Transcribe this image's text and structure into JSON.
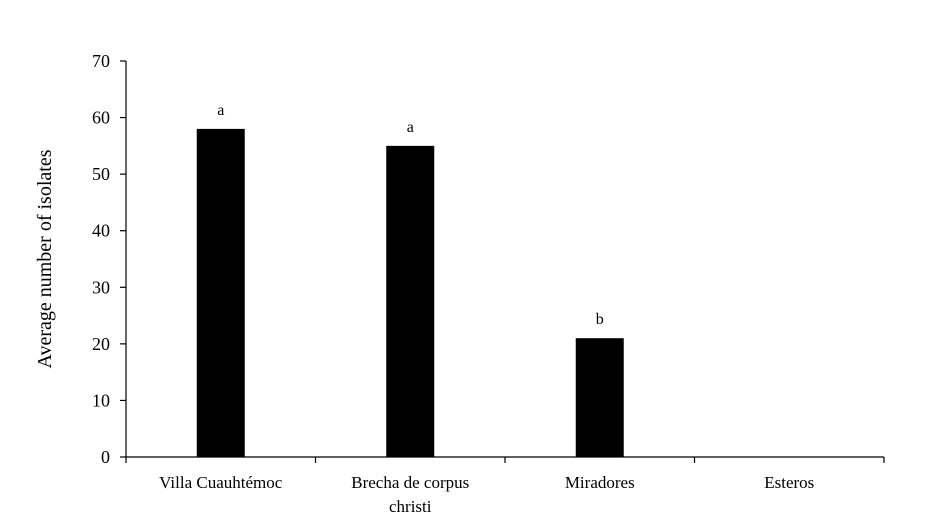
{
  "chart_data": {
    "type": "bar",
    "categories": [
      "Villa Cuauhtémoc",
      "Brecha de corpus christi",
      "Miradores",
      "Esteros"
    ],
    "category_label_lines": [
      [
        "Villa Cuauhtémoc"
      ],
      [
        "Brecha de corpus",
        "christi"
      ],
      [
        "Miradores"
      ],
      [
        "Esteros"
      ]
    ],
    "values": [
      58,
      55,
      21,
      0
    ],
    "data_labels": [
      "a",
      "a",
      "b",
      ""
    ],
    "title": "",
    "xlabel": "",
    "ylabel": "Average number of isolates",
    "ylim": [
      0,
      70
    ],
    "yticks": [
      0,
      10,
      20,
      30,
      40,
      50,
      60,
      70
    ],
    "grid": false,
    "bar_color": "#000000"
  }
}
